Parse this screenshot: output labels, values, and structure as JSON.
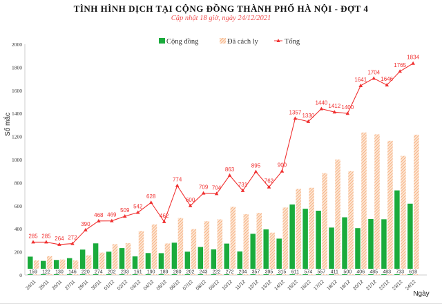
{
  "chart_data": {
    "type": "bar",
    "title": "TÌNH HÌNH DỊCH TẠI CỘNG ĐỒNG THÀNH PHỐ HÀ NỘI - ĐỢT 4",
    "subtitle": "Cập nhật 18 giờ, ngày 24/12/2021",
    "xlabel": "Ngày",
    "ylabel": "Số mắc",
    "ylim": [
      0,
      2000
    ],
    "yticks": [
      0,
      200,
      400,
      600,
      800,
      1000,
      1200,
      1400,
      1600,
      1800,
      2000
    ],
    "grid": false,
    "legend_placement": "top-center",
    "categories": [
      "24/11",
      "25/11",
      "26/11",
      "27/11",
      "29/11",
      "30/11",
      "01/12",
      "02/12",
      "03/12",
      "04/12",
      "05/12",
      "06/12",
      "07/12",
      "08/12",
      "09/12",
      "10/12",
      "11/12",
      "12/12",
      "13/12",
      "14/12",
      "15/12",
      "16/12",
      "17/12",
      "18/12",
      "19/12",
      "20/12",
      "21/12",
      "22/12",
      "23/12",
      "24/12"
    ],
    "series": [
      {
        "name": "Cộng đồng",
        "type": "bar",
        "color": "#1aab3c",
        "values": [
          159,
          122,
          130,
          146,
          220,
          274,
          202,
          233,
          161,
          190,
          189,
          280,
          202,
          243,
          222,
          272,
          204,
          357,
          395,
          315,
          611,
          574,
          557,
          411,
          500,
          406,
          485,
          483,
          733,
          618
        ]
      },
      {
        "name": "Đã cách ly",
        "type": "bar",
        "pattern": "hatched",
        "color": "#f4a46e",
        "values": [
          126,
          163,
          134,
          126,
          170,
          194,
          267,
          276,
          381,
          438,
          273,
          494,
          398,
          466,
          482,
          591,
          527,
          538,
          367,
          585,
          746,
          756,
          883,
          1001,
          900,
          1235,
          1219,
          1163,
          1032,
          1216
        ]
      },
      {
        "name": "Tổng",
        "type": "line",
        "marker": "triangle",
        "color": "#f03030",
        "values": [
          285,
          285,
          264,
          272,
          390,
          468,
          469,
          509,
          542,
          628,
          462,
          774,
          600,
          709,
          704,
          863,
          731,
          895,
          762,
          900,
          1357,
          1330,
          1440,
          1412,
          1400,
          1641,
          1704,
          1646,
          1765,
          1834
        ]
      }
    ]
  }
}
